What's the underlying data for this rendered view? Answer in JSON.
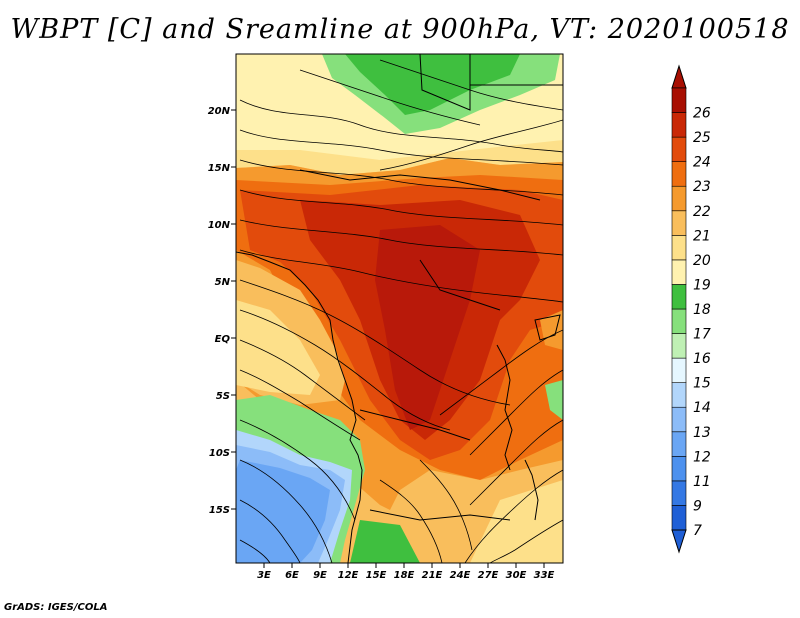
{
  "title": "WBPT [C] and Sreamline at 900hPa, VT: 2020100518",
  "credit": "GrADS: IGES/COLA",
  "lat_labels": [
    "20N",
    "15N",
    "10N",
    "5N",
    "EQ",
    "5S",
    "10S",
    "15S"
  ],
  "lon_labels": [
    "3E",
    "6E",
    "9E",
    "12E",
    "15E",
    "18E",
    "21E",
    "24E",
    "27E",
    "30E",
    "33E"
  ],
  "colorbar": {
    "levels": [
      "7",
      "9",
      "11",
      "12",
      "13",
      "14",
      "15",
      "16",
      "17",
      "18",
      "19",
      "20",
      "21",
      "22",
      "23",
      "24",
      "25",
      "26"
    ],
    "colors": [
      "#1f5fd6",
      "#3478e4",
      "#4d91ee",
      "#6aa6f4",
      "#8cbcf8",
      "#b2d6fb",
      "#e6f7ff",
      "#bff0b4",
      "#86e07c",
      "#3fbf3f",
      "#fff2b0",
      "#fde08a",
      "#f9be5c",
      "#f59a2e",
      "#ef6e10",
      "#e24b0c",
      "#c92806",
      "#a80f02"
    ]
  }
}
